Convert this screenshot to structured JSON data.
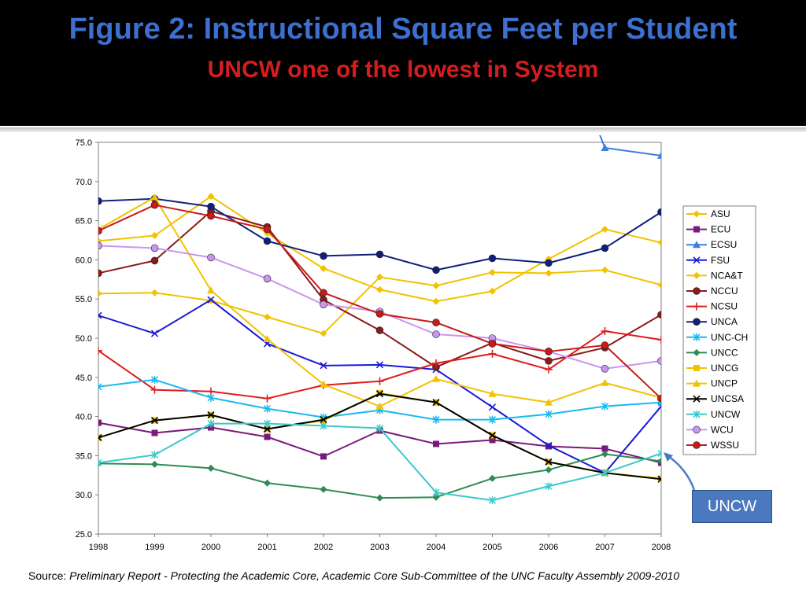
{
  "title": "Figure 2: Instructional Square Feet per Student",
  "subtitle": "UNCW one of the lowest in System",
  "source_label": "Source:",
  "source_text": "Preliminary Report - Protecting the Academic Core, Academic Core Sub-Committee of the UNC Faculty Assembly 2009-2010",
  "callout": "UNCW",
  "chart_data": {
    "type": "line",
    "x": [
      1998,
      1999,
      2000,
      2001,
      2002,
      2003,
      2004,
      2005,
      2006,
      2007,
      2008
    ],
    "xticks": [
      "1998",
      "1999",
      "2000",
      "2001",
      "2002",
      "2003",
      "2004",
      "2005",
      "2006",
      "2007",
      "2008"
    ],
    "ylim": [
      25,
      75
    ],
    "yticks": [
      "25.0",
      "30.0",
      "35.0",
      "40.0",
      "45.0",
      "50.0",
      "55.0",
      "60.0",
      "65.0",
      "70.0",
      "75.0"
    ],
    "grid": false,
    "legend_position": "right",
    "series": [
      {
        "name": "ASU",
        "color": "#f2c200",
        "marker": "diamond",
        "values": [
          55.7,
          55.8,
          54.8,
          52.7,
          50.6,
          57.8,
          56.7,
          58.4,
          58.3,
          58.7,
          56.8
        ]
      },
      {
        "name": "ECU",
        "color": "#7a1a7a",
        "marker": "square",
        "values": [
          39.2,
          37.9,
          38.6,
          37.4,
          34.9,
          38.2,
          36.5,
          37.0,
          36.2,
          35.9,
          34.1
        ]
      },
      {
        "name": "ECSU",
        "color": "#3d7ee0",
        "marker": "triangle",
        "values": [
          null,
          null,
          null,
          null,
          null,
          null,
          null,
          null,
          null,
          74.3,
          73.3
        ],
        "lead_in": [
          76.5
        ]
      },
      {
        "name": "FSU",
        "color": "#1a1ad8",
        "marker": "x",
        "values": [
          52.9,
          50.6,
          54.9,
          49.3,
          46.5,
          46.6,
          46.0,
          41.2,
          36.3,
          32.8,
          41.3
        ]
      },
      {
        "name": "NCA&T",
        "color": "#f2c200",
        "marker": "diamond",
        "values": [
          62.4,
          63.1,
          68.1,
          63.4,
          58.9,
          56.2,
          54.7,
          56.0,
          60.1,
          63.9,
          62.2
        ]
      },
      {
        "name": "NCCU",
        "color": "#8b1a1a",
        "marker": "circle",
        "values": [
          58.3,
          59.9,
          66.2,
          64.2,
          54.9,
          51.0,
          46.3,
          49.4,
          47.1,
          48.8,
          53.0
        ]
      },
      {
        "name": "NCSU",
        "color": "#e01a1a",
        "marker": "plus",
        "values": [
          48.4,
          43.4,
          43.2,
          42.3,
          44.0,
          44.5,
          46.8,
          48.0,
          46.0,
          50.9,
          49.8
        ]
      },
      {
        "name": "UNCA",
        "color": "#10207a",
        "marker": "circle",
        "values": [
          67.5,
          67.8,
          66.8,
          62.4,
          60.5,
          60.7,
          58.7,
          60.2,
          59.6,
          61.5,
          66.1
        ]
      },
      {
        "name": "UNC-CH",
        "color": "#1ab8f0",
        "marker": "asterisk",
        "values": [
          43.8,
          44.7,
          42.4,
          41.0,
          39.9,
          40.8,
          39.6,
          39.6,
          40.3,
          41.3,
          41.8
        ]
      },
      {
        "name": "UNCC",
        "color": "#2e8b57",
        "marker": "diamond",
        "values": [
          34.0,
          33.9,
          33.4,
          31.5,
          30.7,
          29.6,
          29.7,
          32.1,
          33.2,
          35.2,
          34.3
        ]
      },
      {
        "name": "UNCG",
        "color": "#f2c200",
        "marker": "square",
        "values": [
          37.3,
          39.5,
          40.2,
          38.4,
          39.5,
          43.0,
          41.8,
          37.6,
          34.2,
          32.8,
          32.1
        ]
      },
      {
        "name": "UNCP",
        "color": "#f2c200",
        "marker": "triangle",
        "values": [
          63.9,
          68.0,
          56.1,
          49.9,
          44.1,
          41.3,
          44.8,
          42.9,
          41.8,
          44.3,
          42.4
        ]
      },
      {
        "name": "UNCSA",
        "color": "#000000",
        "marker": "x",
        "values": [
          37.3,
          39.5,
          40.2,
          38.4,
          39.6,
          42.9,
          41.8,
          37.6,
          34.2,
          32.8,
          32.0
        ]
      },
      {
        "name": "UNCW",
        "color": "#3ec8c8",
        "marker": "asterisk",
        "values": [
          34.1,
          35.1,
          39.1,
          39.1,
          38.8,
          38.5,
          30.3,
          29.3,
          31.1,
          32.8,
          35.3
        ]
      },
      {
        "name": "WCU",
        "color": "#c896f0",
        "marker": "circle",
        "values": [
          61.8,
          61.5,
          60.3,
          57.6,
          54.3,
          53.4,
          50.5,
          50.0,
          48.3,
          46.1,
          47.1
        ]
      },
      {
        "name": "WSSU",
        "color": "#c81a1a",
        "marker": "circle",
        "values": [
          63.7,
          67.0,
          65.6,
          63.9,
          55.8,
          53.1,
          52.0,
          49.3,
          48.3,
          49.1,
          42.3
        ]
      }
    ]
  }
}
